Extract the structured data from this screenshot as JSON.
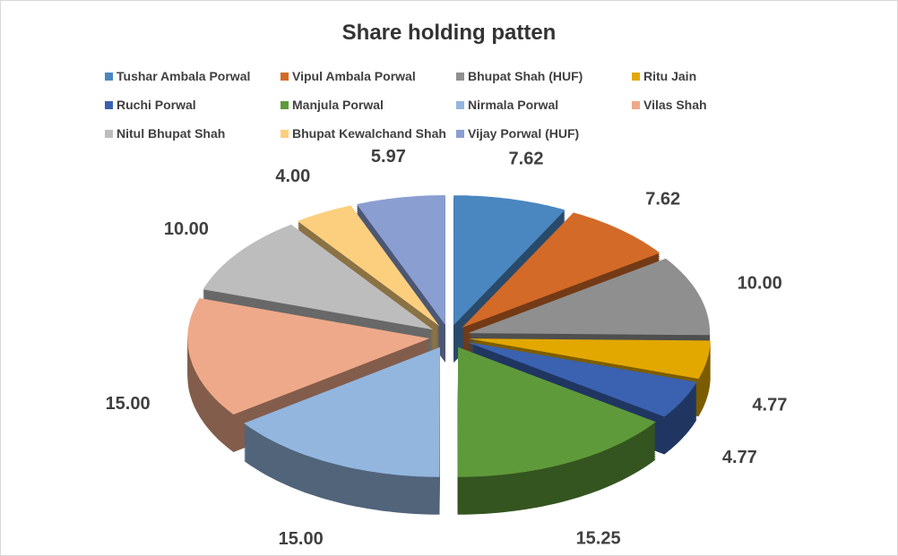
{
  "chart_data": {
    "type": "pie",
    "style": "3d-exploded",
    "title": "Share holding patten",
    "legend_position": "top",
    "categories": [
      "Tushar Ambala Porwal",
      "Vipul Ambala Porwal",
      "Bhupat Shah (HUF)",
      "Ritu Jain",
      "Ruchi Porwal",
      "Manjula Porwal",
      "Nirmala Porwal",
      "Vilas Shah",
      "Nitul Bhupat Shah",
      "Bhupat Kewalchand Shah",
      "Vijay Porwal (HUF)"
    ],
    "values": [
      7.62,
      7.62,
      10.0,
      4.77,
      4.77,
      15.25,
      15.0,
      15.0,
      10.0,
      4.0,
      5.97
    ],
    "data_labels": [
      "7.62",
      "7.62",
      "10.00",
      "4.77",
      "4.77",
      "15.25",
      "15.00",
      "15.00",
      "10.00",
      "4.00",
      "5.97"
    ],
    "colors": [
      "#4a86c0",
      "#d36a28",
      "#8f8f8f",
      "#e2a800",
      "#3a62b0",
      "#5f9a3a",
      "#93b6de",
      "#eea98a",
      "#bdbdbd",
      "#fbcf7e",
      "#8b9ed2"
    ]
  }
}
